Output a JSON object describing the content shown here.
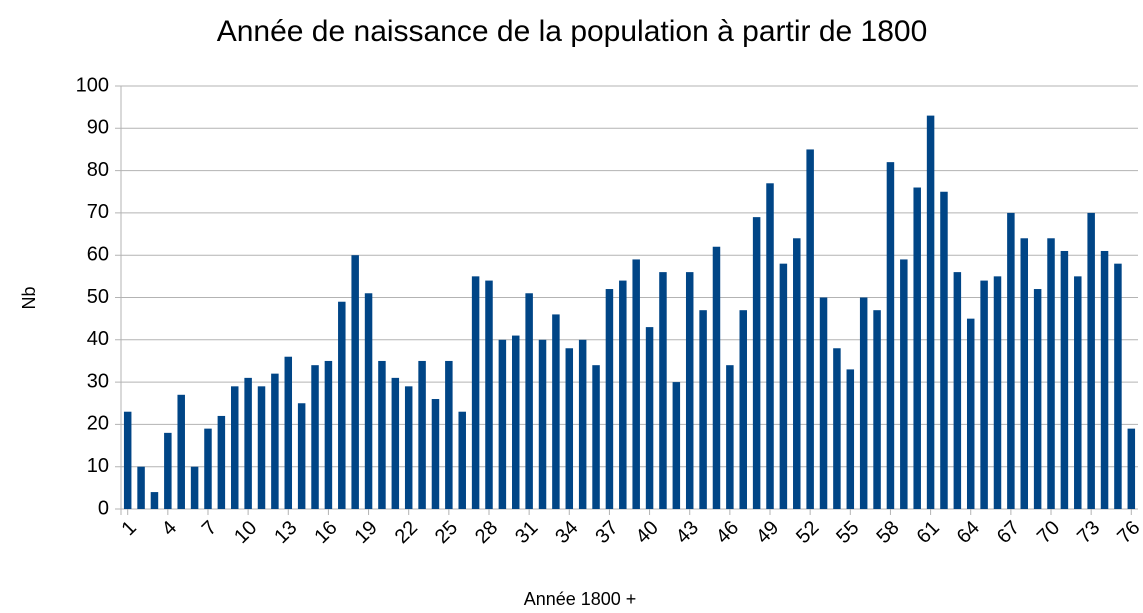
{
  "chart_data": {
    "type": "bar",
    "title": "Année de naissance de la population à partir de 1800",
    "x_label": "Année 1800 +",
    "y_label": "Nb",
    "color": "#004586",
    "grid": true,
    "categories": [
      "1",
      null,
      null,
      "4",
      null,
      null,
      "7",
      null,
      null,
      "10",
      null,
      null,
      "13",
      null,
      null,
      "16",
      null,
      null,
      "19",
      null,
      null,
      "22",
      null,
      null,
      "25",
      null,
      null,
      "28",
      null,
      null,
      "31",
      null,
      null,
      "34",
      null,
      null,
      "37",
      null,
      null,
      "40",
      null,
      null,
      "43",
      null,
      null,
      "46",
      null,
      null,
      "49",
      null,
      null,
      "52",
      null,
      null,
      "55",
      null,
      null,
      "58",
      null,
      null,
      "61",
      null,
      null,
      "64",
      null,
      null,
      "67",
      null,
      null,
      "70",
      null,
      null,
      "73",
      null,
      null,
      "76"
    ],
    "values": [
      23,
      10,
      4,
      18,
      27,
      10,
      19,
      22,
      29,
      31,
      29,
      32,
      36,
      25,
      34,
      35,
      49,
      60,
      51,
      35,
      31,
      29,
      35,
      26,
      35,
      23,
      55,
      54,
      40,
      41,
      51,
      40,
      46,
      38,
      40,
      34,
      52,
      54,
      59,
      43,
      56,
      30,
      56,
      47,
      62,
      34,
      47,
      69,
      77,
      58,
      64,
      85,
      50,
      38,
      33,
      50,
      47,
      82,
      59,
      76,
      93,
      75,
      56,
      45,
      54,
      55,
      70,
      64,
      52,
      64,
      61,
      55,
      70,
      61,
      58,
      19
    ],
    "ylim": [
      0,
      100
    ],
    "yticks": [
      0,
      10,
      20,
      30,
      40,
      50,
      60,
      70,
      80,
      90,
      100
    ]
  }
}
